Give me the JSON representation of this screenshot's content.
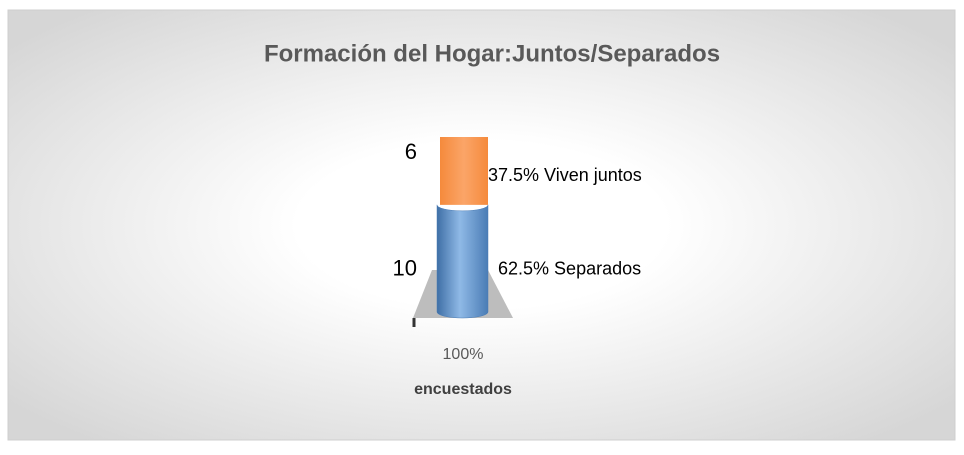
{
  "chart_data": {
    "type": "stacked-cylinder",
    "title": "Formación del Hogar:Juntos/Separados",
    "categories": [
      "100%"
    ],
    "x_label": "encuestados",
    "series": [
      {
        "name": "Separados",
        "color": "#5b8fc7",
        "values": [
          10
        ],
        "shares": [
          {
            "value": 62.5,
            "label": "62.5%"
          }
        ]
      },
      {
        "name": "Viven juntos",
        "color": "#f79646",
        "values": [
          6
        ],
        "shares": [
          {
            "value": 37.5,
            "label": "37.5%"
          }
        ]
      }
    ]
  }
}
